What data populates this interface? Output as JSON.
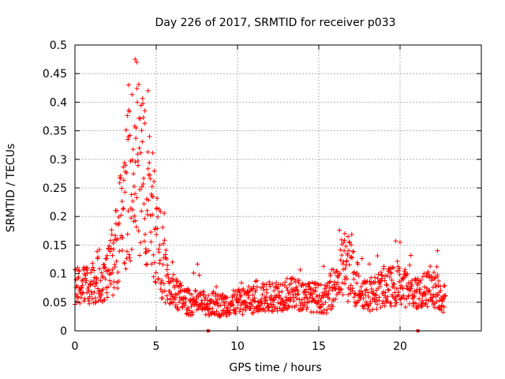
{
  "chart_data": {
    "type": "scatter",
    "title": "Day 226 of 2017, SRMTID for receiver p033",
    "xlabel": "GPS time / hours",
    "ylabel": "SRMTID / TECUs",
    "xlim": [
      0,
      25
    ],
    "ylim": [
      0,
      0.5
    ],
    "grid": true,
    "x_ticks": [
      "0",
      "5",
      "10",
      "15",
      "20"
    ],
    "x_tick_values": [
      0,
      5,
      10,
      15,
      20
    ],
    "y_ticks": [
      "0",
      "0.05",
      "0.1",
      "0.15",
      "0.2",
      "0.25",
      "0.3",
      "0.35",
      "0.4",
      "0.45",
      "0.5"
    ],
    "y_tick_values": [
      0,
      0.05,
      0.1,
      0.15,
      0.2,
      0.25,
      0.3,
      0.35,
      0.4,
      0.45,
      0.5
    ],
    "marker": "plus",
    "color": "#ff0000",
    "series": [
      {
        "name": "SRMTID",
        "x_range_hours": [
          0,
          22.8
        ],
        "baseline_profile": [
          {
            "t": 0.0,
            "v": 0.075
          },
          {
            "t": 1.0,
            "v": 0.085
          },
          {
            "t": 2.0,
            "v": 0.095
          },
          {
            "t": 2.5,
            "v": 0.14
          },
          {
            "t": 3.0,
            "v": 0.22
          },
          {
            "t": 3.5,
            "v": 0.27
          },
          {
            "t": 3.8,
            "v": 0.29
          },
          {
            "t": 4.3,
            "v": 0.26
          },
          {
            "t": 4.8,
            "v": 0.2
          },
          {
            "t": 5.3,
            "v": 0.13
          },
          {
            "t": 5.8,
            "v": 0.07
          },
          {
            "t": 7.0,
            "v": 0.05
          },
          {
            "t": 9.0,
            "v": 0.045
          },
          {
            "t": 11.0,
            "v": 0.055
          },
          {
            "t": 13.0,
            "v": 0.065
          },
          {
            "t": 14.5,
            "v": 0.06
          },
          {
            "t": 15.5,
            "v": 0.055
          },
          {
            "t": 16.5,
            "v": 0.11
          },
          {
            "t": 17.0,
            "v": 0.1
          },
          {
            "t": 18.0,
            "v": 0.06
          },
          {
            "t": 19.0,
            "v": 0.075
          },
          {
            "t": 20.0,
            "v": 0.08
          },
          {
            "t": 21.0,
            "v": 0.065
          },
          {
            "t": 22.0,
            "v": 0.075
          },
          {
            "t": 22.8,
            "v": 0.055
          }
        ],
        "peaks": [
          {
            "x": 3.7,
            "y": 0.475
          },
          {
            "x": 3.8,
            "y": 0.47
          },
          {
            "x": 4.5,
            "y": 0.42
          },
          {
            "x": 4.3,
            "y": 0.385
          },
          {
            "x": 3.3,
            "y": 0.43
          },
          {
            "x": 16.6,
            "y": 0.17
          },
          {
            "x": 16.8,
            "y": 0.165
          },
          {
            "x": 20.0,
            "y": 0.155
          },
          {
            "x": 22.3,
            "y": 0.14
          }
        ],
        "tick_markers_on_axis": [
          8.2,
          21.1
        ]
      }
    ]
  }
}
